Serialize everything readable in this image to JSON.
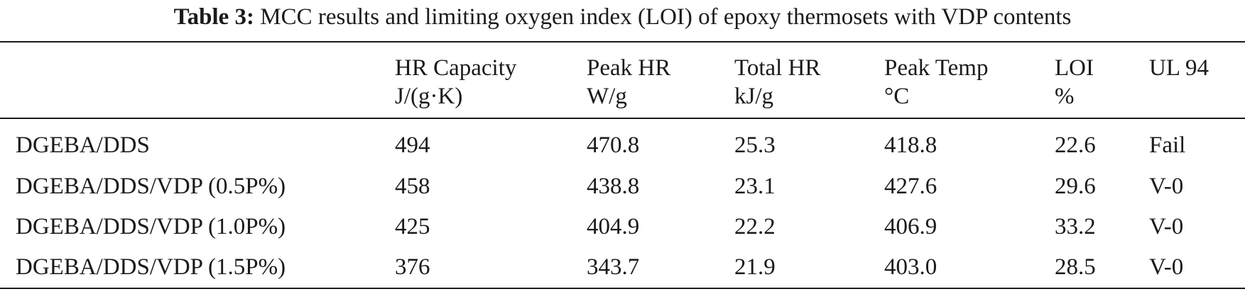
{
  "caption": {
    "label": "Table 3:",
    "text": "MCC results and limiting oxygen index (LOI) of epoxy thermosets with VDP contents"
  },
  "header": [
    {
      "name": "",
      "unit": ""
    },
    {
      "name": "HR Capacity",
      "unit": "J/(g·K)"
    },
    {
      "name": "Peak HR",
      "unit": "W/g"
    },
    {
      "name": "Total HR",
      "unit": "kJ/g"
    },
    {
      "name": "Peak Temp",
      "unit": "°C"
    },
    {
      "name": "LOI",
      "unit": "%"
    },
    {
      "name": "UL 94",
      "unit": ""
    }
  ],
  "rows": [
    [
      "DGEBA/DDS",
      "494",
      "470.8",
      "25.3",
      "418.8",
      "22.6",
      "Fail"
    ],
    [
      "DGEBA/DDS/VDP (0.5P%)",
      "458",
      "438.8",
      "23.1",
      "427.6",
      "29.6",
      "V-0"
    ],
    [
      "DGEBA/DDS/VDP (1.0P%)",
      "425",
      "404.9",
      "22.2",
      "406.9",
      "33.2",
      "V-0"
    ],
    [
      "DGEBA/DDS/VDP (1.5P%)",
      "376",
      "343.7",
      "21.9",
      "403.0",
      "28.5",
      "V-0"
    ]
  ]
}
